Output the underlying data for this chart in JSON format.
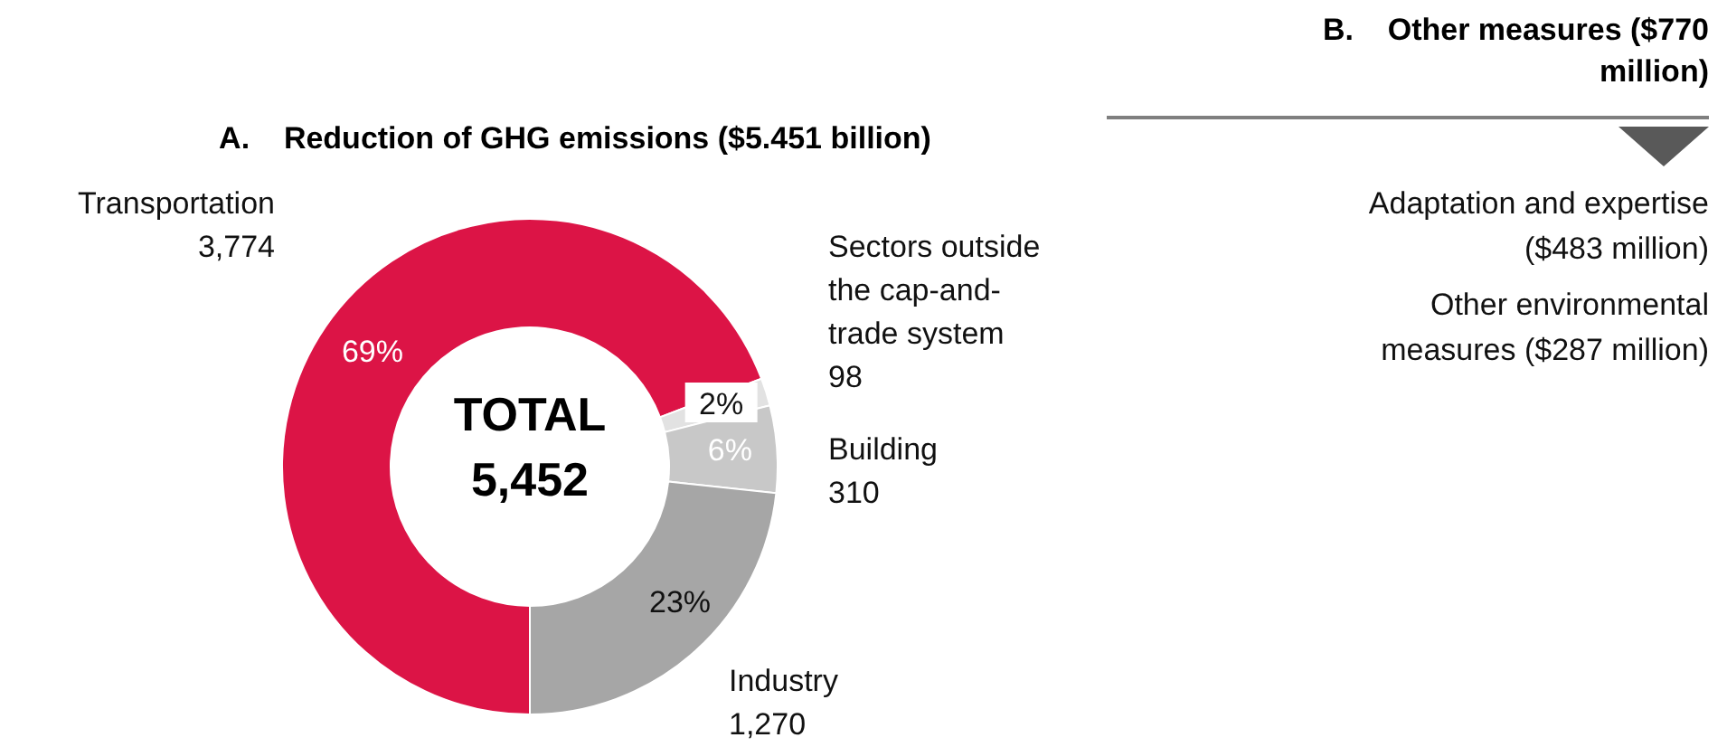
{
  "chart_data": [
    {
      "type": "donut",
      "title": "A.    Reduction of GHG emissions ($5.451 billion)",
      "categories": [
        "Transportation",
        "Sectors outside the cap-and-trade system",
        "Building",
        "Industry"
      ],
      "values": [
        3774,
        98,
        310,
        1270
      ],
      "value_labels": [
        "3,774",
        "98",
        "310",
        "1,270"
      ],
      "colors": [
        "#dc1446",
        "#e2e2e2",
        "#c8c8c8",
        "#a6a6a6"
      ],
      "annotations": [
        {
          "text": "69%",
          "x": "Transportation"
        },
        {
          "text": "2%",
          "x": "Sectors outside the cap-and-trade system"
        },
        {
          "text": "6%",
          "x": "Building"
        },
        {
          "text": "23%",
          "x": "Industry"
        },
        "TOTAL\n5,452"
      ]
    },
    {
      "type": "other",
      "title": "B.    Other measures ($770 million)",
      "annotations": [
        "Adaptation and expertise ($483 million)",
        "Other environmental measures ($287 million)"
      ]
    }
  ]
}
